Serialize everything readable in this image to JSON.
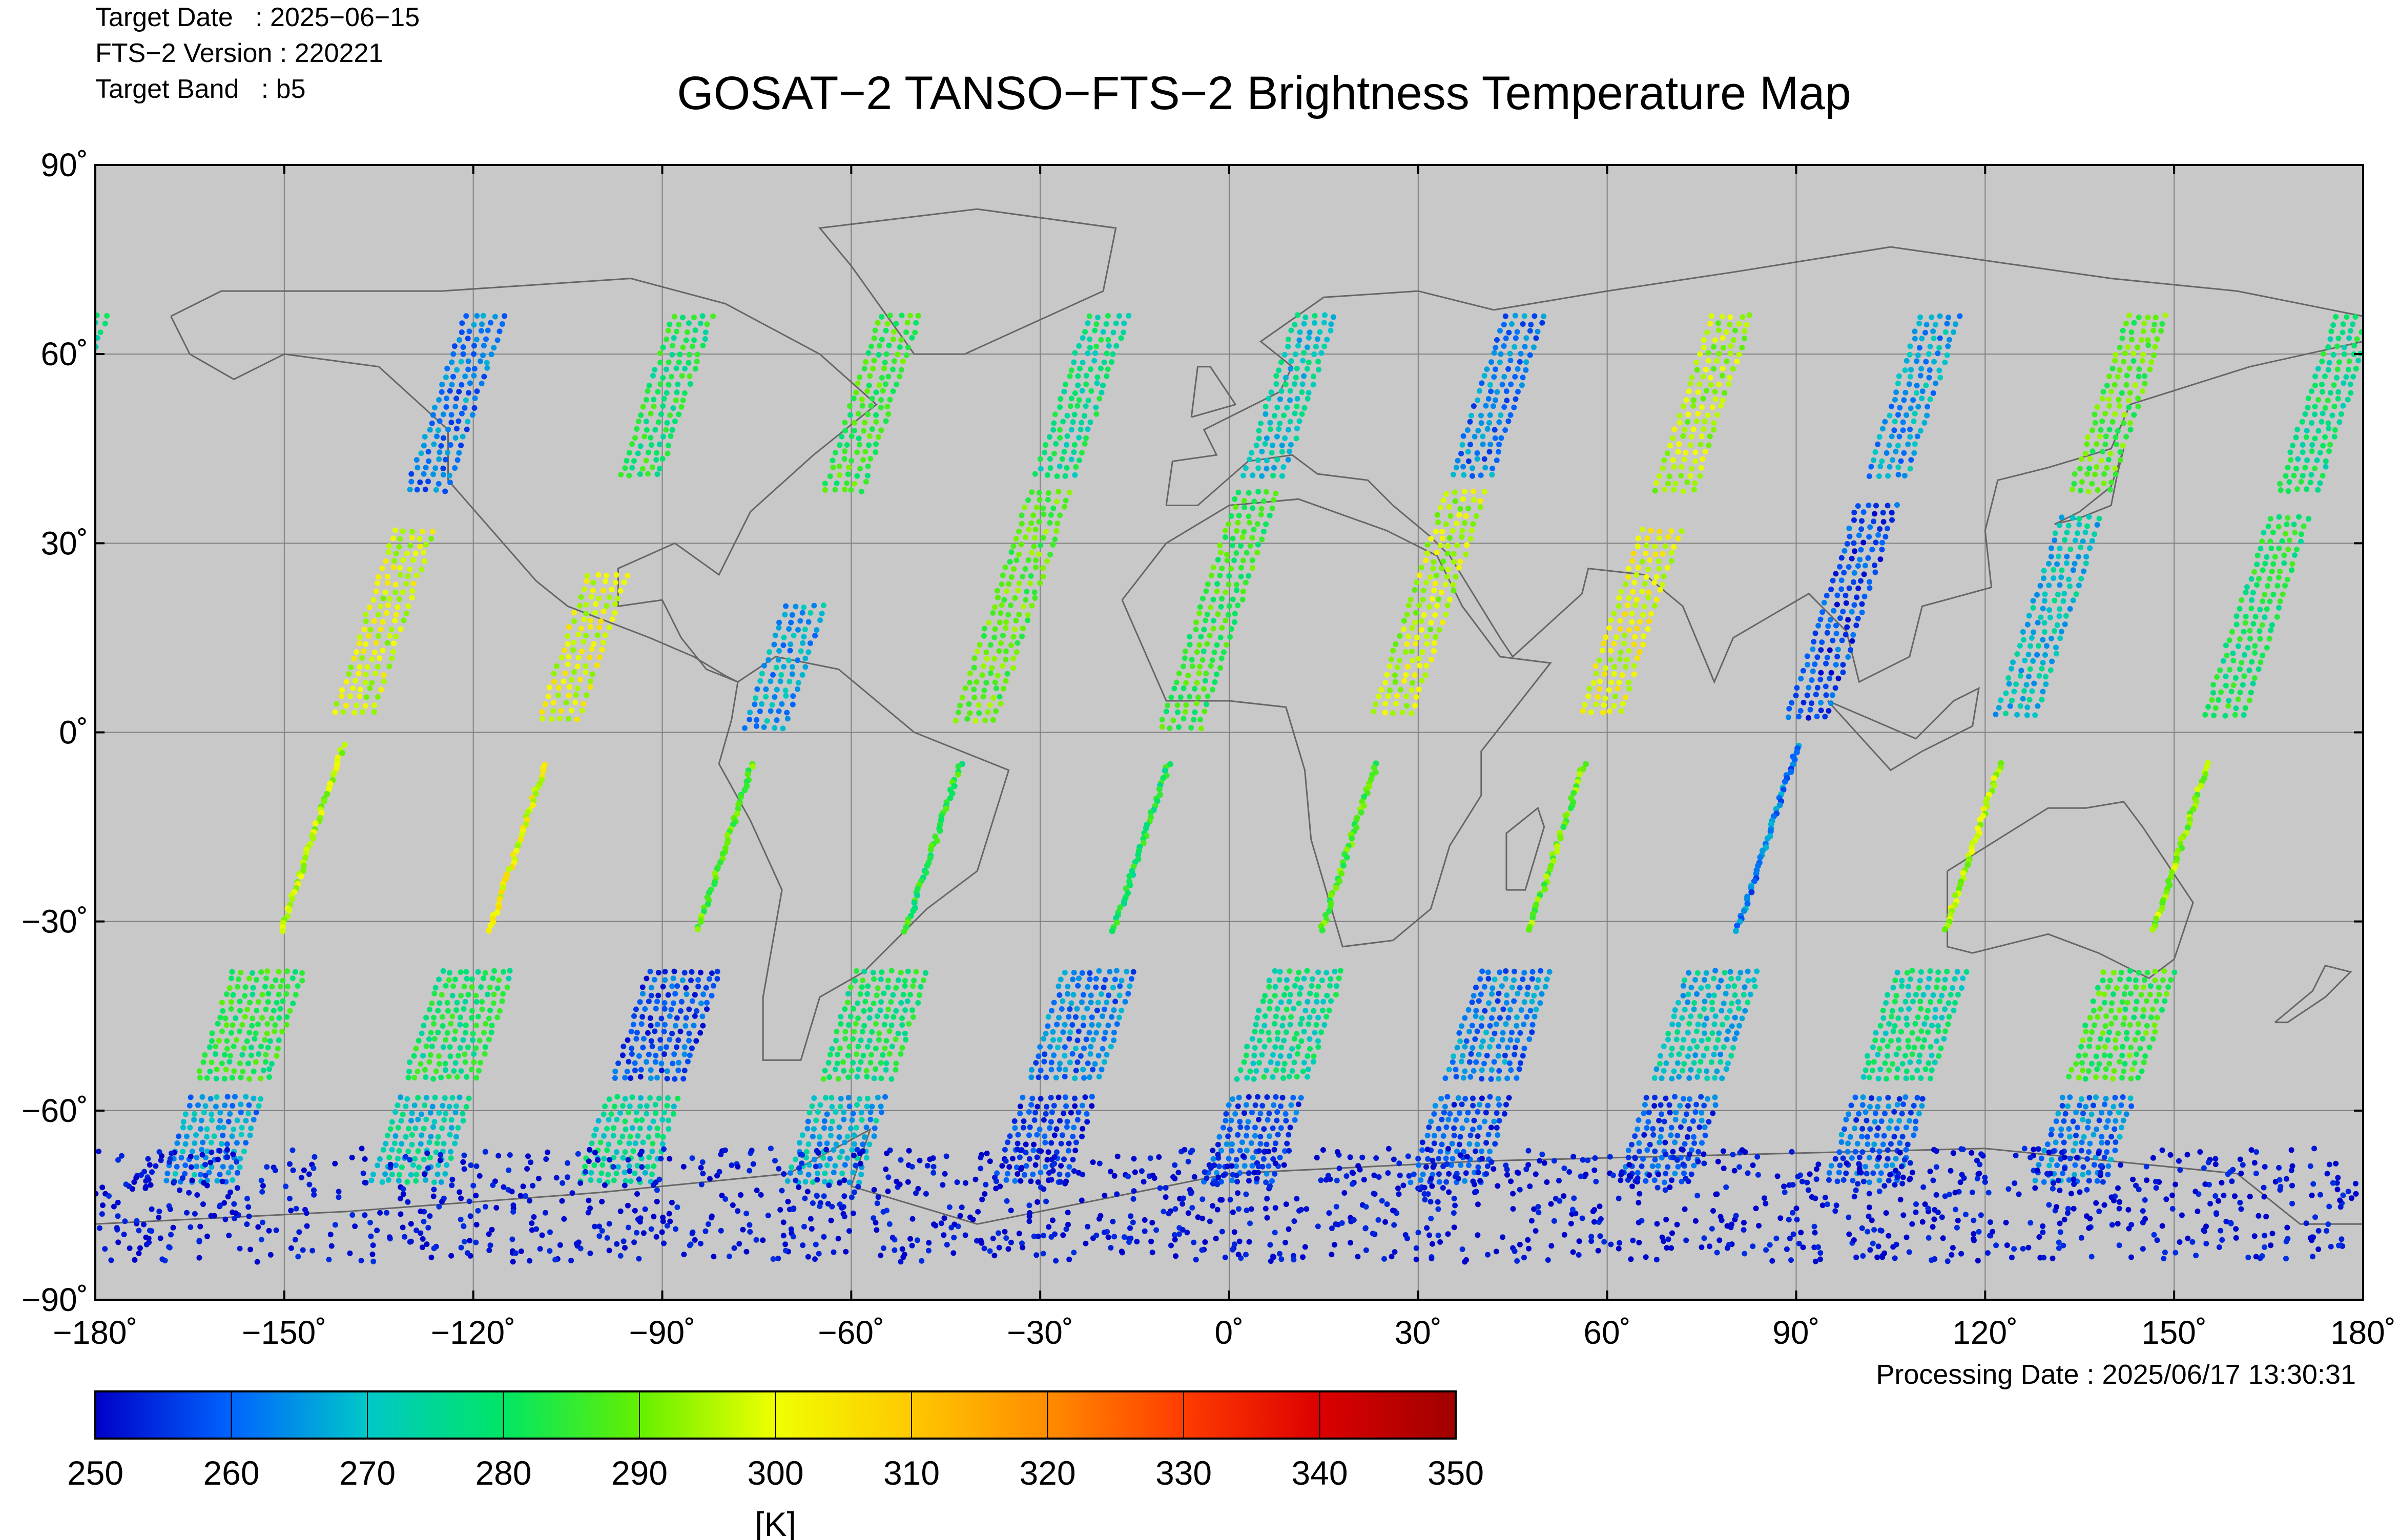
{
  "header": {
    "target_date": "Target Date   : 2025−06−15",
    "fts_version": "FTS−2 Version : 220221",
    "target_band": "Target Band   : b5",
    "processing_date": "Processing Date : 2025/06/17 13:30:31"
  },
  "chart_data": {
    "type": "scatter",
    "title": "GOSAT−2 TANSO−FTS−2 Brightness Temperature Map",
    "xlabel": "",
    "ylabel": "",
    "xlim": [
      -180,
      180
    ],
    "ylim": [
      -90,
      90
    ],
    "grid": true,
    "x_ticks": [
      -180,
      -150,
      -120,
      -90,
      -60,
      -30,
      0,
      30,
      60,
      90,
      120,
      150,
      180
    ],
    "x_tick_labels": [
      "−180˚",
      "−150˚",
      "−120˚",
      "−90˚",
      "−60˚",
      "−30˚",
      "0˚",
      "30˚",
      "60˚",
      "90˚",
      "120˚",
      "150˚",
      "180˚"
    ],
    "y_ticks": [
      90,
      60,
      30,
      0,
      -30,
      -60,
      -90
    ],
    "y_tick_labels": [
      "90˚",
      "60˚",
      "30˚",
      "0˚",
      "−30˚",
      "−60˚",
      "−90˚"
    ],
    "colorbar": {
      "range": [
        250,
        350
      ],
      "ticks": [
        250,
        260,
        270,
        280,
        290,
        300,
        310,
        320,
        330,
        340,
        350
      ],
      "tick_labels": [
        "250",
        "260",
        "270",
        "280",
        "290",
        "300",
        "310",
        "320",
        "330",
        "340",
        "350"
      ],
      "unit": "[K]",
      "colors": [
        "#0000c8",
        "#0064ff",
        "#00c8c8",
        "#00e664",
        "#64f000",
        "#f0ff00",
        "#ffc800",
        "#ff8c00",
        "#ff3c00",
        "#dc0000",
        "#a00000"
      ]
    },
    "background_color": "#c8c8c8",
    "orbit_tracks": [
      {
        "equator_lon": -140,
        "segments": [
          {
            "lat": [
              66,
              38
            ],
            "temp": 262
          },
          {
            "lat": [
              32,
              3
            ],
            "temp": 298
          },
          {
            "lat": [
              -2,
              -32
            ],
            "temp": 296
          },
          {
            "lat": [
              -38,
              -56
            ],
            "temp": 283
          },
          {
            "lat": [
              -58,
              -72
            ],
            "temp": 265
          }
        ]
      },
      {
        "equator_lon": -107,
        "segments": [
          {
            "lat": [
              66,
              40
            ],
            "temp": 281
          },
          {
            "lat": [
              25,
              2
            ],
            "temp": 299
          },
          {
            "lat": [
              -5,
              -32
            ],
            "temp": 300
          },
          {
            "lat": [
              -38,
              -56
            ],
            "temp": 280
          },
          {
            "lat": [
              -58,
              -72
            ],
            "temp": 272
          }
        ]
      },
      {
        "equator_lon": -74,
        "segments": [
          {
            "lat": [
              66,
              38
            ],
            "temp": 285
          },
          {
            "lat": [
              20,
              0
            ],
            "temp": 266
          },
          {
            "lat": [
              -5,
              -32
            ],
            "temp": 288
          },
          {
            "lat": [
              -38,
              -56
            ],
            "temp": 258
          },
          {
            "lat": [
              -58,
              -72
            ],
            "temp": 275
          }
        ]
      },
      {
        "equator_lon": -41,
        "segments": [
          {
            "lat": [
              66,
              40
            ],
            "temp": 277
          },
          {
            "lat": [
              38,
              2
            ],
            "temp": 289
          },
          {
            "lat": [
              -5,
              -32
            ],
            "temp": 283
          },
          {
            "lat": [
              -38,
              -56
            ],
            "temp": 280
          },
          {
            "lat": [
              -58,
              -72
            ],
            "temp": 268
          }
        ]
      },
      {
        "equator_lon": -8,
        "segments": [
          {
            "lat": [
              66,
              40
            ],
            "temp": 272
          },
          {
            "lat": [
              38,
              0
            ],
            "temp": 285
          },
          {
            "lat": [
              -5,
              -32
            ],
            "temp": 281
          },
          {
            "lat": [
              -38,
              -56
            ],
            "temp": 262
          },
          {
            "lat": [
              -58,
              -72
            ],
            "temp": 255
          }
        ]
      },
      {
        "equator_lon": 25,
        "segments": [
          {
            "lat": [
              66,
              40
            ],
            "temp": 262
          },
          {
            "lat": [
              38,
              3
            ],
            "temp": 296
          },
          {
            "lat": [
              -5,
              -32
            ],
            "temp": 288
          },
          {
            "lat": [
              -38,
              -56
            ],
            "temp": 276
          },
          {
            "lat": [
              -58,
              -72
            ],
            "temp": 258
          }
        ]
      },
      {
        "equator_lon": 58,
        "segments": [
          {
            "lat": [
              66,
              38
            ],
            "temp": 295
          },
          {
            "lat": [
              32,
              3
            ],
            "temp": 300
          },
          {
            "lat": [
              -5,
              -32
            ],
            "temp": 290
          },
          {
            "lat": [
              -38,
              -56
            ],
            "temp": 262
          },
          {
            "lat": [
              -58,
              -72
            ],
            "temp": 258
          }
        ]
      },
      {
        "equator_lon": 91,
        "segments": [
          {
            "lat": [
              66,
              40
            ],
            "temp": 266
          },
          {
            "lat": [
              36,
              2
            ],
            "temp": 257
          },
          {
            "lat": [
              -2,
              -32
            ],
            "temp": 262
          },
          {
            "lat": [
              -38,
              -56
            ],
            "temp": 270
          },
          {
            "lat": [
              -58,
              -72
            ],
            "temp": 258
          }
        ]
      },
      {
        "equator_lon": 124,
        "segments": [
          {
            "lat": [
              66,
              38
            ],
            "temp": 288
          },
          {
            "lat": [
              34,
              2
            ],
            "temp": 270
          },
          {
            "lat": [
              -5,
              -32
            ],
            "temp": 296
          },
          {
            "lat": [
              -38,
              -56
            ],
            "temp": 276
          },
          {
            "lat": [
              -58,
              -72
            ],
            "temp": 260
          }
        ]
      },
      {
        "equator_lon": 157,
        "segments": [
          {
            "lat": [
              66,
              38
            ],
            "temp": 278
          },
          {
            "lat": [
              34,
              2
            ],
            "temp": 281
          },
          {
            "lat": [
              -5,
              -32
            ],
            "temp": 293
          },
          {
            "lat": [
              -38,
              -56
            ],
            "temp": 285
          },
          {
            "lat": [
              -58,
              -72
            ],
            "temp": 262
          }
        ]
      }
    ],
    "antarctic_band": {
      "lat_range": [
        -84,
        -66
      ],
      "temp": 252
    }
  }
}
